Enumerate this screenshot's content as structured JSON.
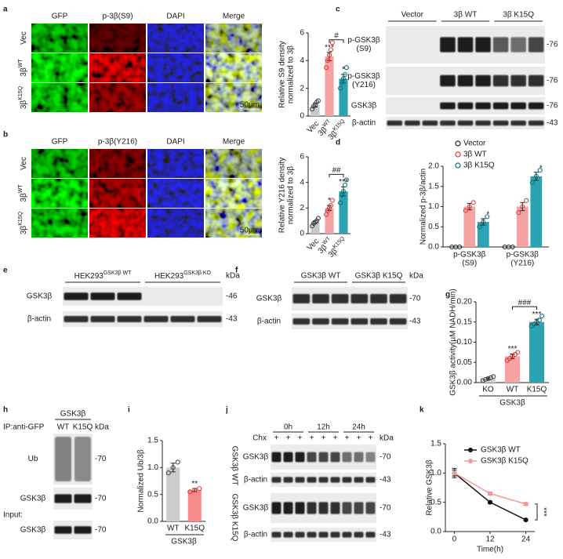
{
  "panel_labels": [
    "a",
    "b",
    "c",
    "d",
    "e",
    "f",
    "g",
    "h",
    "i",
    "j",
    "k"
  ],
  "microscopy": {
    "a": {
      "columns": [
        "GFP",
        "p-3β(S9)",
        "DAPI",
        "Merge"
      ],
      "column_colors": [
        "#22cc22",
        "#ee2222",
        "#3344ee",
        "#ddaa00"
      ],
      "rows": [
        [
          "Vec"
        ],
        [
          "3β",
          "WT"
        ],
        [
          "3β",
          "K15Q"
        ]
      ],
      "scale": "50μm"
    },
    "b": {
      "columns": [
        "GFP",
        "p-3β(Y216)",
        "DAPI",
        "Merge"
      ],
      "column_colors": [
        "#22cc22",
        "#ee2222",
        "#3344ee",
        "#ddaa00"
      ],
      "rows": [
        [
          "Vec"
        ],
        [
          "3β",
          "WT"
        ],
        [
          "3β",
          "K15Q"
        ]
      ],
      "scale": "50μm"
    }
  },
  "blots": {
    "c": {
      "lanes": [
        "Vector",
        "3β WT",
        "3β K15Q"
      ],
      "rows": [
        {
          "name": [
            "p-GSK3β",
            "(S9)"
          ],
          "kda": "-76"
        },
        {
          "name": [
            "p-GSK3β",
            "(Y216)"
          ],
          "kda": "-76"
        },
        {
          "name": [
            "GSK3β"
          ],
          "kda": "-76"
        },
        {
          "name": [
            "β-actin"
          ],
          "kda": "-43"
        }
      ]
    },
    "e": {
      "groups": [
        [
          "HEK293",
          "GSK3β WT"
        ],
        [
          "HEK293",
          "GSK3β KO"
        ]
      ],
      "unit": "kDa",
      "rows": [
        {
          "name": [
            "GSK3β"
          ],
          "kda": "-46"
        },
        {
          "name": [
            "β-actin"
          ],
          "kda": "-43"
        }
      ]
    },
    "f": {
      "groups": [
        "GSK3β WT",
        "GSK3β K15Q"
      ],
      "unit": "kDa",
      "rows": [
        {
          "name": [
            "GSK3β"
          ],
          "kda": "-70"
        },
        {
          "name": [
            "β-actin"
          ],
          "kda": "-43"
        }
      ]
    },
    "h": {
      "title": "GSK3β",
      "ip": "IP:anti-GFP",
      "lanes": [
        "WT",
        "K15Q"
      ],
      "unit": "kDa",
      "rows": [
        {
          "name": [
            "Ub"
          ],
          "kda": "-70"
        },
        {
          "name": [
            "GSK3β"
          ],
          "kda": "-70"
        }
      ],
      "input": "Input:",
      "input_rows": [
        {
          "name": [
            "GSK3β"
          ],
          "kda": "-70"
        }
      ]
    },
    "j": {
      "chx": "Chx",
      "times": [
        "0h",
        "12h",
        "24h"
      ],
      "treatment": [
        "+",
        "+",
        "+",
        "+",
        "+",
        "+",
        "+",
        "+",
        "+"
      ],
      "unit": "kDa",
      "blocks": [
        {
          "name": "GSK3β WT",
          "rows": [
            {
              "name": [
                "GSK3β"
              ],
              "kda": "-70"
            },
            {
              "name": [
                "β-actin"
              ],
              "kda": "-43"
            }
          ]
        },
        {
          "name": "GSK3β K15Q",
          "rows": [
            {
              "name": [
                "GSK3β"
              ],
              "kda": "-70"
            },
            {
              "name": [
                "β-actin"
              ],
              "kda": "-43"
            }
          ]
        }
      ]
    }
  },
  "chart_data": [
    {
      "type": "bar",
      "ylabel": [
        "Relative S9 density",
        "normalized to 3β"
      ],
      "categories": [
        [
          "Vec"
        ],
        [
          "3β",
          "WT"
        ],
        [
          "3β",
          "K15Q"
        ]
      ],
      "values": [
        0.8,
        4.3,
        2.7
      ],
      "errors": [
        0.15,
        0.3,
        0.3
      ],
      "points": [
        [
          0.5,
          0.7,
          0.8,
          1.0,
          1.1
        ],
        [
          3.5,
          4.0,
          4.4,
          4.8,
          5.3
        ],
        [
          2.0,
          2.4,
          2.7,
          3.0,
          3.5
        ]
      ],
      "colors": [
        "#c9c9c9",
        "#f6a3a3",
        "#2ba3b3"
      ],
      "point_colors": [
        "#444444",
        "#e03a3a",
        "#136f7c"
      ],
      "ylim": [
        0,
        6
      ],
      "yticks": [
        0,
        2,
        4,
        6
      ],
      "stars": [
        null,
        "***",
        "*"
      ],
      "bracket": "#"
    },
    {
      "type": "bar",
      "ylabel": [
        "Relative Y216 density",
        "normalized to 3β"
      ],
      "categories": [
        [
          "Vec"
        ],
        [
          "3β",
          "WT"
        ],
        [
          "3β",
          "K15Q"
        ]
      ],
      "values": [
        0.9,
        2.0,
        3.3
      ],
      "errors": [
        0.1,
        0.2,
        0.35
      ],
      "points": [
        [
          0.6,
          0.8,
          0.9,
          1.0,
          1.2
        ],
        [
          1.5,
          1.8,
          2.0,
          2.2,
          2.6
        ],
        [
          2.4,
          3.0,
          3.3,
          3.8,
          4.2
        ]
      ],
      "colors": [
        "#c9c9c9",
        "#f6a3a3",
        "#2ba3b3"
      ],
      "point_colors": [
        "#444444",
        "#e03a3a",
        "#136f7c"
      ],
      "ylim": [
        0,
        6
      ],
      "yticks": [
        0,
        2,
        4,
        6
      ],
      "stars": [
        null,
        "*",
        "***"
      ],
      "bracket": "##"
    },
    {
      "type": "grouped-bar",
      "ylabel": [
        "Normalized p-3β/actin"
      ],
      "categories": [
        [
          "p-GSK3β",
          "(S9)"
        ],
        [
          "p-GSK3β",
          "(Y216)"
        ]
      ],
      "series": [
        {
          "name": "Vector",
          "color": "#222222",
          "fill": "#ffffff",
          "values": [
            0,
            0
          ],
          "errors": [
            0,
            0
          ],
          "points": [
            [
              0,
              0,
              0
            ],
            [
              0,
              0,
              0
            ]
          ]
        },
        {
          "name": "3β WT",
          "color": "#e03a3a",
          "fill": "#f6a3a3",
          "values": [
            1.0,
            1.0
          ],
          "errors": [
            0.08,
            0.1
          ],
          "points": [
            [
              0.9,
              1.0,
              1.1
            ],
            [
              0.85,
              1.0,
              1.15
            ]
          ]
        },
        {
          "name": "3β K15Q",
          "color": "#136f7c",
          "fill": "#2ba3b3",
          "values": [
            0.62,
            1.75
          ],
          "errors": [
            0.08,
            0.1
          ],
          "points": [
            [
              0.5,
              0.62,
              0.75
            ],
            [
              1.6,
              1.75,
              1.9
            ]
          ],
          "stars": [
            "*",
            "*"
          ]
        }
      ],
      "ylim": [
        0,
        2
      ],
      "yticks": [
        {
          "value": 0,
          "label": "0.0"
        },
        {
          "value": 0.5,
          "label": "0.5"
        },
        {
          "value": 1,
          "label": "1.0"
        },
        {
          "value": 1.5,
          "label": "1.5"
        },
        {
          "value": 2,
          "label": "2.0"
        }
      ]
    },
    {
      "type": "bar",
      "ylabel": [
        "GSK3β activity(μM NADH/min)"
      ],
      "categories": [
        "KO",
        "WT",
        "K15Q"
      ],
      "group": "GSK3β",
      "values": [
        0.01,
        0.065,
        0.15
      ],
      "errors": [
        0.002,
        0.006,
        0.007
      ],
      "points": [
        [
          0.005,
          0.008,
          0.01,
          0.012,
          0.015
        ],
        [
          0.055,
          0.06,
          0.065,
          0.07,
          0.075
        ],
        [
          0.14,
          0.145,
          0.15,
          0.155,
          0.165
        ]
      ],
      "colors": [
        "#d0d0d0",
        "#f6a3a3",
        "#2ba3b3"
      ],
      "point_colors": [
        "#444444",
        "#e03a3a",
        "#136f7c"
      ],
      "ylim": [
        0,
        0.2
      ],
      "yticks": [
        {
          "value": 0,
          "label": "0.00"
        },
        {
          "value": 0.05,
          "label": "0.05"
        },
        {
          "value": 0.1,
          "label": "0.10"
        },
        {
          "value": 0.15,
          "label": "0.15"
        },
        {
          "value": 0.2,
          "label": "0.20"
        }
      ],
      "stars": [
        null,
        "***",
        "***"
      ],
      "bracket": "###"
    },
    {
      "type": "bar",
      "ylabel": [
        "Normalized Ub/3β"
      ],
      "categories": [
        "WT",
        "K15Q"
      ],
      "group": "GSK3β",
      "values": [
        1.0,
        0.58
      ],
      "errors": [
        0.08,
        0.03
      ],
      "points": [
        [
          0.9,
          1.0,
          1.1
        ],
        [
          0.55,
          0.58,
          0.61
        ]
      ],
      "colors": [
        "#cccccc",
        "#f48a8a"
      ],
      "point_colors": [
        "#444444",
        "#e03a3a"
      ],
      "ylim": [
        0,
        1.5
      ],
      "yticks": [
        {
          "value": 0,
          "label": "0.0"
        },
        {
          "value": 0.5,
          "label": "0.5"
        },
        {
          "value": 1,
          "label": "1.0"
        },
        {
          "value": 1.5,
          "label": "1.5"
        }
      ],
      "stars": [
        null,
        "**"
      ]
    },
    {
      "type": "line",
      "ylabel": [
        "Relative GSK3β"
      ],
      "xlabel": "Time(h)",
      "x": [
        0,
        12,
        24
      ],
      "xlim": [
        -3,
        27
      ],
      "xticks": [
        0,
        12,
        24
      ],
      "series": [
        {
          "name": "GSK3β WT",
          "color": "#111111",
          "values": [
            1.0,
            0.5,
            0.2
          ],
          "errors": [
            0.08,
            0.02,
            0.01
          ]
        },
        {
          "name": "GSK3β K15Q",
          "color": "#f59a9a",
          "values": [
            1.0,
            0.65,
            0.47
          ],
          "errors": [
            0.05,
            0.02,
            0.02
          ]
        }
      ],
      "ylim": [
        0,
        1.5
      ],
      "yticks": [
        {
          "value": 0,
          "label": "0.0"
        },
        {
          "value": 0.5,
          "label": "0.5"
        },
        {
          "value": 1,
          "label": "1.0"
        },
        {
          "value": 1.5,
          "label": "1.5"
        }
      ],
      "annotation": "***"
    }
  ]
}
